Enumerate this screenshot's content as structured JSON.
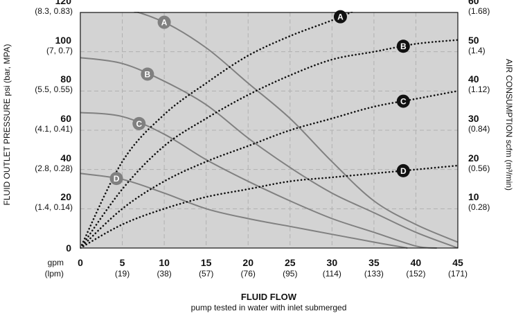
{
  "chart_data": {
    "type": "line",
    "xlabel": "FLUID FLOW",
    "subtitle": "pump tested in water with inlet submerged",
    "ylabel_left": "FLUID OUTLET PRESSURE psi (bar, MPA)",
    "ylabel_right": "AIR CONSUMPTION scfm (m³/min)",
    "x_unit_labels": [
      "gpm",
      "(lpm)"
    ],
    "xlim": [
      0,
      45
    ],
    "ylim_left": [
      0,
      120
    ],
    "ylim_right": [
      0,
      60
    ],
    "grid": true,
    "x_ticks": [
      {
        "v": 0,
        "gpm": "0",
        "lpm": ""
      },
      {
        "v": 5,
        "gpm": "5",
        "lpm": "(19)"
      },
      {
        "v": 10,
        "gpm": "10",
        "lpm": "(38)"
      },
      {
        "v": 15,
        "gpm": "15",
        "lpm": "(57)"
      },
      {
        "v": 20,
        "gpm": "20",
        "lpm": "(76)"
      },
      {
        "v": 25,
        "gpm": "25",
        "lpm": "(95)"
      },
      {
        "v": 30,
        "gpm": "30",
        "lpm": "(114)"
      },
      {
        "v": 35,
        "gpm": "35",
        "lpm": "(133)"
      },
      {
        "v": 40,
        "gpm": "40",
        "lpm": "(152)"
      },
      {
        "v": 45,
        "gpm": "45",
        "lpm": "(171)"
      }
    ],
    "y_left_ticks": [
      {
        "v": 0,
        "psi": "0",
        "sub": ""
      },
      {
        "v": 20,
        "psi": "20",
        "sub": "(1.4, 0.14)"
      },
      {
        "v": 40,
        "psi": "40",
        "sub": "(2.8, 0.28)"
      },
      {
        "v": 60,
        "psi": "60",
        "sub": "(4.1, 0.41)"
      },
      {
        "v": 80,
        "psi": "80",
        "sub": "(5.5, 0.55)"
      },
      {
        "v": 100,
        "psi": "100",
        "sub": "(7, 0.7)"
      },
      {
        "v": 120,
        "psi": "120",
        "sub": "(8.3, 0.83)"
      }
    ],
    "y_right_ticks": [
      {
        "v": 10,
        "scfm": "10",
        "sub": "(0.28)"
      },
      {
        "v": 20,
        "scfm": "20",
        "sub": "(0.56)"
      },
      {
        "v": 30,
        "scfm": "30",
        "sub": "(0.84)"
      },
      {
        "v": 40,
        "scfm": "40",
        "sub": "(1.12)"
      },
      {
        "v": 50,
        "scfm": "50",
        "sub": "(1.4)"
      },
      {
        "v": 60,
        "scfm": "60",
        "sub": "(1.68)"
      }
    ],
    "pressure_series": [
      {
        "name": "A",
        "axis": "left",
        "points": [
          [
            0,
            123
          ],
          [
            5,
            122
          ],
          [
            10,
            115
          ],
          [
            15,
            102
          ],
          [
            20,
            84
          ],
          [
            25,
            66
          ],
          [
            30,
            44
          ],
          [
            35,
            24
          ],
          [
            40,
            12
          ],
          [
            45,
            3
          ]
        ],
        "label_at": 10
      },
      {
        "name": "B",
        "axis": "left",
        "points": [
          [
            0,
            97
          ],
          [
            5,
            94
          ],
          [
            10,
            85
          ],
          [
            15,
            73
          ],
          [
            20,
            56
          ],
          [
            25,
            41
          ],
          [
            30,
            28
          ],
          [
            35,
            18
          ],
          [
            40,
            8
          ],
          [
            45,
            0
          ]
        ],
        "label_at": 8
      },
      {
        "name": "C",
        "axis": "left",
        "points": [
          [
            0,
            69
          ],
          [
            5,
            67
          ],
          [
            10,
            58
          ],
          [
            15,
            45
          ],
          [
            20,
            34
          ],
          [
            25,
            24
          ],
          [
            30,
            15
          ],
          [
            35,
            8
          ],
          [
            40,
            1
          ],
          [
            42.5,
            0
          ]
        ],
        "label_at": 7
      },
      {
        "name": "D",
        "axis": "left",
        "points": [
          [
            0,
            38
          ],
          [
            5,
            35
          ],
          [
            10,
            28
          ],
          [
            15,
            20
          ],
          [
            20,
            15
          ],
          [
            25,
            11
          ],
          [
            30,
            7
          ],
          [
            35,
            3
          ],
          [
            39,
            0
          ]
        ],
        "label_at": 4.3
      }
    ],
    "air_series": [
      {
        "name": "A",
        "axis": "right",
        "points": [
          [
            0,
            0
          ],
          [
            5,
            22
          ],
          [
            10,
            34
          ],
          [
            15,
            42
          ],
          [
            20,
            49
          ],
          [
            25,
            54
          ],
          [
            30,
            58
          ],
          [
            33.3,
            61
          ]
        ],
        "label_at": 31
      },
      {
        "name": "B",
        "axis": "right",
        "points": [
          [
            0,
            0
          ],
          [
            5,
            15
          ],
          [
            10,
            26
          ],
          [
            15,
            33
          ],
          [
            20,
            39
          ],
          [
            25,
            44
          ],
          [
            30,
            48
          ],
          [
            35,
            50
          ],
          [
            40,
            52
          ],
          [
            45,
            53
          ]
        ],
        "label_at": 38.5
      },
      {
        "name": "C",
        "axis": "right",
        "points": [
          [
            0,
            0
          ],
          [
            5,
            10
          ],
          [
            10,
            17
          ],
          [
            15,
            22
          ],
          [
            20,
            26
          ],
          [
            25,
            30
          ],
          [
            30,
            33
          ],
          [
            35,
            36
          ],
          [
            40,
            38
          ],
          [
            45,
            40
          ]
        ],
        "label_at": 38.5
      },
      {
        "name": "D",
        "axis": "right",
        "points": [
          [
            0,
            0
          ],
          [
            5,
            6
          ],
          [
            10,
            10
          ],
          [
            15,
            13
          ],
          [
            20,
            15
          ],
          [
            25,
            17
          ],
          [
            30,
            18
          ],
          [
            35,
            19
          ],
          [
            40,
            20
          ],
          [
            45,
            21
          ]
        ],
        "label_at": 38.5
      }
    ],
    "colors": {
      "plot_bg": "#d3d3d3",
      "grid": "#b0b0b0",
      "pressure_line": "#808080",
      "air_line": "#111111",
      "pressure_badge": "#808080",
      "air_badge": "#111111",
      "badge_text": "#ffffff"
    }
  }
}
